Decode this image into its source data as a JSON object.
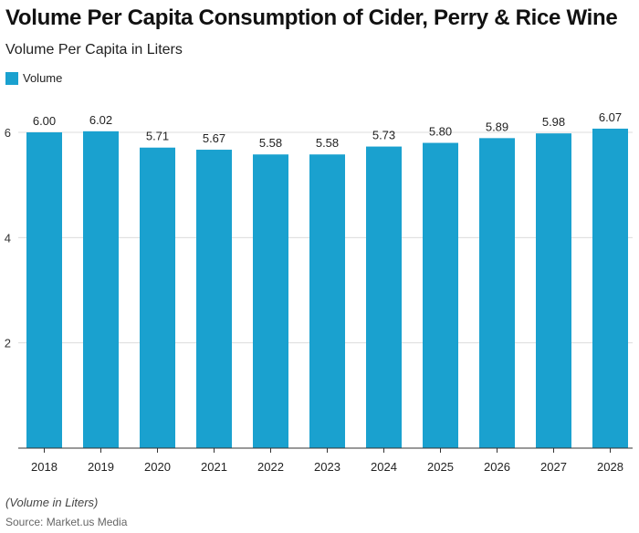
{
  "chart_data": {
    "type": "bar",
    "title": "Volume Per Capita Consumption of Cider, Perry & Rice Wine",
    "subtitle": "Volume Per Capita in Liters",
    "categories": [
      "2018",
      "2019",
      "2020",
      "2021",
      "2022",
      "2023",
      "2024",
      "2025",
      "2026",
      "2027",
      "2028"
    ],
    "series": [
      {
        "name": "Volume",
        "values": [
          6.0,
          6.02,
          5.71,
          5.67,
          5.58,
          5.58,
          5.73,
          5.8,
          5.89,
          5.98,
          6.07
        ]
      }
    ],
    "data_labels": [
      "6.00",
      "6.02",
      "5.71",
      "5.67",
      "5.58",
      "5.58",
      "5.73",
      "5.80",
      "5.89",
      "5.98",
      "6.07"
    ],
    "yticks": [
      2,
      4,
      6
    ],
    "ylim": [
      0,
      6.6
    ],
    "grid": true,
    "legend_position": "top-left",
    "bar_color": "#1aa1cf",
    "note": "(Volume in Liters)",
    "source": "Source: Market.us Media"
  }
}
